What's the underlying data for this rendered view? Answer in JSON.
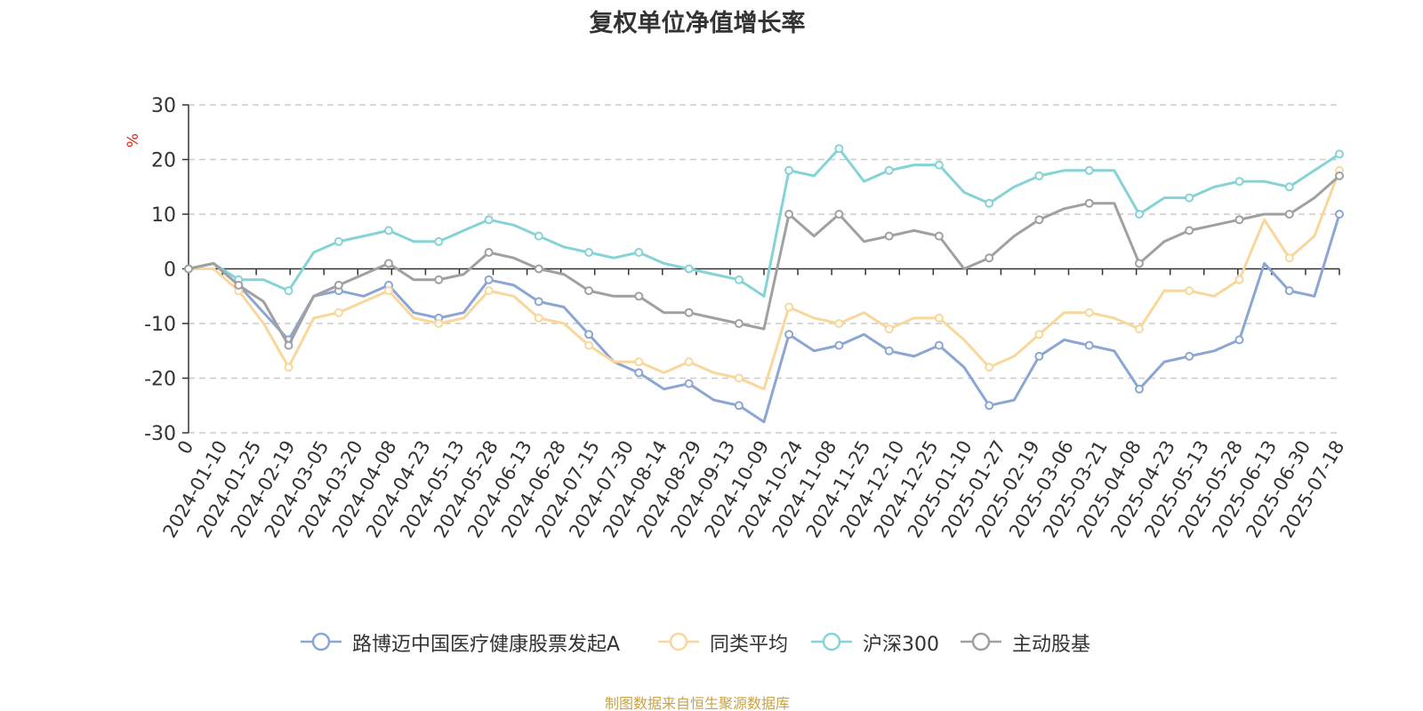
{
  "title": "复权单位净值增长率",
  "source_note": "制图数据来自恒生聚源数据库",
  "colors": {
    "grid": "#cccccc",
    "axis": "#333333",
    "unit": "#e0261b",
    "text": "#333333"
  },
  "chart_data": {
    "type": "line",
    "title": "复权单位净值增长率",
    "ylabel": "%",
    "xlabel": "",
    "ylim": [
      -30,
      30
    ],
    "yticks": [
      -30,
      -20,
      -10,
      0,
      10,
      20,
      30
    ],
    "grid": true,
    "legend_position": "bottom-center",
    "x_tick_labels": [
      "0",
      "2024-01-10",
      "2024-01-25",
      "2024-02-19",
      "2024-03-05",
      "2024-03-20",
      "2024-04-08",
      "2024-04-23",
      "2024-05-13",
      "2024-05-28",
      "2024-06-13",
      "2024-06-28",
      "2024-07-15",
      "2024-07-30",
      "2024-08-14",
      "2024-08-29",
      "2024-09-13",
      "2024-10-09",
      "2024-10-24",
      "2024-11-08",
      "2024-11-25",
      "2024-12-10",
      "2024-12-25",
      "2025-01-10",
      "2025-01-27",
      "2025-02-19",
      "2025-03-06",
      "2025-03-21",
      "2025-04-08",
      "2025-04-23",
      "2025-05-13",
      "2025-05-28",
      "2025-06-13",
      "2025-06-30",
      "2025-07-18"
    ],
    "series": [
      {
        "name": "路博迈中国医疗健康股票发起A",
        "color": "#8ba6d3",
        "values": [
          0,
          1,
          -3,
          -8,
          -13,
          -5,
          -4,
          -5,
          -3,
          -8,
          -9,
          -8,
          -2,
          -3,
          -6,
          -7,
          -12,
          -17,
          -19,
          -22,
          -21,
          -24,
          -25,
          -28,
          -12,
          -15,
          -14,
          -12,
          -15,
          -16,
          -14,
          -18,
          -25,
          -24,
          -16,
          -13,
          -14,
          -15,
          -22,
          -17,
          -16,
          -15,
          -13,
          1,
          -4,
          -5,
          10
        ]
      },
      {
        "name": "同类平均",
        "color": "#f9d79b",
        "values": [
          0,
          0,
          -4,
          -10,
          -18,
          -9,
          -8,
          -6,
          -4,
          -9,
          -10,
          -9,
          -4,
          -5,
          -9,
          -10,
          -14,
          -17,
          -17,
          -19,
          -17,
          -19,
          -20,
          -22,
          -7,
          -9,
          -10,
          -8,
          -11,
          -9,
          -9,
          -13,
          -18,
          -16,
          -12,
          -8,
          -8,
          -9,
          -11,
          -4,
          -4,
          -5,
          -2,
          9,
          2,
          6,
          18
        ]
      },
      {
        "name": "沪深300",
        "color": "#85d3d6",
        "values": [
          0,
          1,
          -2,
          -2,
          -4,
          3,
          5,
          6,
          7,
          5,
          5,
          7,
          9,
          8,
          6,
          4,
          3,
          2,
          3,
          1,
          0,
          -1,
          -2,
          -5,
          18,
          17,
          22,
          16,
          18,
          19,
          19,
          14,
          12,
          15,
          17,
          18,
          18,
          18,
          10,
          13,
          13,
          15,
          16,
          16,
          15,
          18,
          21
        ]
      },
      {
        "name": "主动股基",
        "color": "#a0a0a0",
        "values": [
          0,
          1,
          -3,
          -6,
          -14,
          -5,
          -3,
          -1,
          1,
          -2,
          -2,
          -1,
          3,
          2,
          0,
          -1,
          -4,
          -5,
          -5,
          -8,
          -8,
          -9,
          -10,
          -11,
          10,
          6,
          10,
          5,
          6,
          7,
          6,
          0,
          2,
          6,
          9,
          11,
          12,
          12,
          1,
          5,
          7,
          8,
          9,
          10,
          10,
          13,
          17
        ]
      }
    ]
  }
}
